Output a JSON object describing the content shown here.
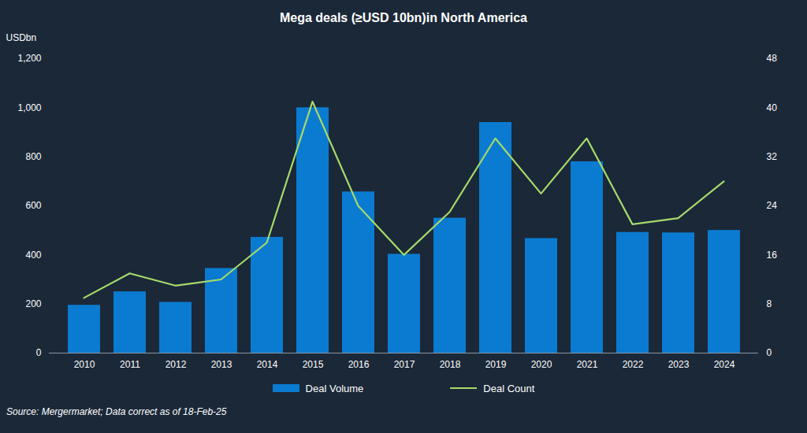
{
  "chart_data": {
    "type": "bar",
    "title": "Mega deals (≥USD 10bn)in North America",
    "y_label": "USDbn",
    "source": "Source: Mergermarket; Data correct as of 18-Feb-25",
    "categories": [
      "2010",
      "2011",
      "2012",
      "2013",
      "2014",
      "2015",
      "2016",
      "2017",
      "2018",
      "2019",
      "2020",
      "2021",
      "2022",
      "2023",
      "2024"
    ],
    "series": [
      {
        "name": "Deal Volume",
        "type": "bar",
        "color": "#0a7bd0",
        "values": [
          195,
          250,
          207,
          345,
          472,
          1000,
          657,
          403,
          550,
          940,
          467,
          780,
          492,
          490,
          500
        ]
      },
      {
        "name": "Deal Count",
        "type": "line",
        "axis": "y2",
        "color": "#a6d96a",
        "values": [
          9,
          13,
          11,
          12,
          18,
          41,
          24,
          16,
          23,
          35,
          26,
          35,
          21,
          22,
          28
        ]
      }
    ],
    "ylim": [
      0,
      1200
    ],
    "yticks": [
      0,
      200,
      400,
      600,
      800,
      {
        "value": 1000,
        "label": "1,000"
      },
      {
        "value": 1200,
        "label": "1,200"
      }
    ],
    "y2lim": [
      0,
      48
    ],
    "y2ticks": [
      0,
      8,
      16,
      24,
      32,
      40,
      48
    ],
    "grid": false
  }
}
